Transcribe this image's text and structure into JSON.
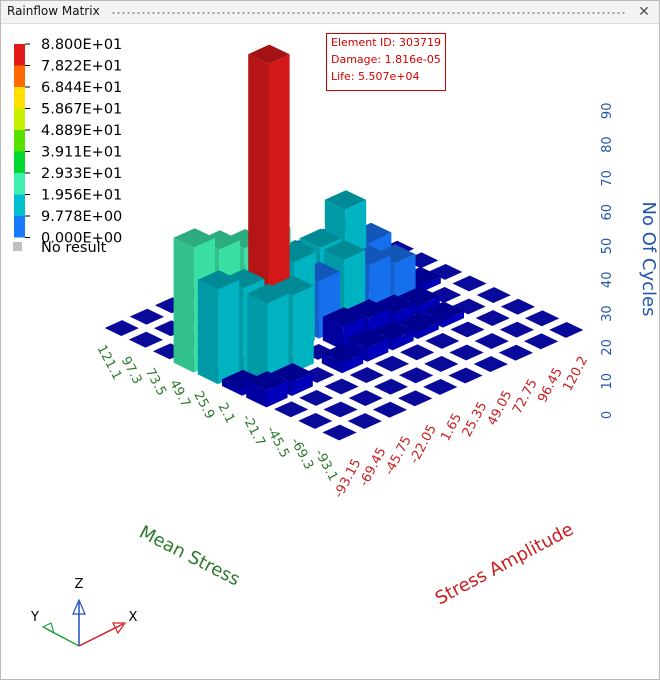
{
  "window": {
    "title": "Rainflow Matrix"
  },
  "legend": {
    "entries": [
      "8.800E+01",
      "7.822E+01",
      "6.844E+01",
      "5.867E+01",
      "4.889E+01",
      "3.911E+01",
      "2.933E+01",
      "1.956E+01",
      "9.778E+00",
      "0.000E+00"
    ],
    "colors": [
      "#e31a1c",
      "#ff6a00",
      "#ffe000",
      "#c7f000",
      "#58e000",
      "#00d832",
      "#3ef0b0",
      "#00c0d0",
      "#1878ff",
      "#0000c8"
    ],
    "no_result_label": "No result",
    "no_result_color": "#c0c0c0"
  },
  "tooltip": {
    "element_id": "Element ID: 303719",
    "damage": "Damage: 1.816e-05",
    "life": "Life: 5.507e+04"
  },
  "triad": {
    "z": "Z",
    "y": "Y",
    "x": "X"
  },
  "colors": {
    "mean_stress": "#2d7a2d",
    "stress_amplitude": "#c81e1e",
    "no_of_cycles": "#2255aa",
    "tile": "#0a0a9a",
    "bar_red": "#e00000",
    "bar_teal": "#1ebbc8",
    "bar_mint": "#24d49c",
    "bar_blue": "#1c5fdc",
    "bar_navy": "#0a0aa8"
  },
  "chart_data": {
    "type": "bar3d",
    "title": "",
    "x_axis": {
      "label": "Stress Amplitude",
      "ticks": [
        "-93.15",
        "-69.45",
        "-45.75",
        "-22.05",
        "1.65",
        "25.35",
        "49.05",
        "72.75",
        "96.45",
        "120.2"
      ]
    },
    "y_axis": {
      "label": "Mean Stress",
      "ticks": [
        "121.1",
        "97.3",
        "73.5",
        "49.7",
        "25.9",
        "2.1",
        "-21.7",
        "-45.5",
        "-69.3",
        "-93.1"
      ]
    },
    "z_axis": {
      "label": "No Of Cycles",
      "ticks": [
        "0",
        "10",
        "20",
        "30",
        "40",
        "50",
        "60",
        "70",
        "80",
        "90"
      ],
      "range": [
        0,
        90
      ]
    },
    "color_range": [
      0,
      88
    ],
    "bars": [
      {
        "amplitude": "-93.15",
        "mean": "-21.7",
        "cycles": 5
      },
      {
        "amplitude": "-69.45",
        "mean": "-21.7",
        "cycles": 4
      },
      {
        "amplitude": "-93.15",
        "mean": "2.1",
        "cycles": 2
      },
      {
        "amplitude": "-93.15",
        "mean": "49.7",
        "cycles": 37
      },
      {
        "amplitude": "-93.15",
        "mean": "25.9",
        "cycles": 28
      },
      {
        "amplitude": "-69.45",
        "mean": "49.7",
        "cycles": 33
      },
      {
        "amplitude": "-69.45",
        "mean": "25.9",
        "cycles": 25
      },
      {
        "amplitude": "-69.45",
        "mean": "2.1",
        "cycles": 24
      },
      {
        "amplitude": "-45.75",
        "mean": "49.7",
        "cycles": 30
      },
      {
        "amplitude": "-45.75",
        "mean": "25.9",
        "cycles": 88
      },
      {
        "amplitude": "-45.75",
        "mean": "2.1",
        "cycles": 23
      },
      {
        "amplitude": "-22.05",
        "mean": "49.7",
        "cycles": 30
      },
      {
        "amplitude": "-22.05",
        "mean": "25.9",
        "cycles": 26
      },
      {
        "amplitude": "1.65",
        "mean": "49.7",
        "cycles": 20
      },
      {
        "amplitude": "1.65",
        "mean": "25.9",
        "cycles": 17
      },
      {
        "amplitude": "25.35",
        "mean": "49.7",
        "cycles": 20
      },
      {
        "amplitude": "25.35",
        "mean": "25.9",
        "cycles": 20
      },
      {
        "amplitude": "49.05",
        "mean": "49.7",
        "cycles": 28
      },
      {
        "amplitude": "49.05",
        "mean": "25.9",
        "cycles": 15
      },
      {
        "amplitude": "72.75",
        "mean": "49.7",
        "cycles": 15
      },
      {
        "amplitude": "72.75",
        "mean": "25.9",
        "cycles": 12
      },
      {
        "amplitude": "1.65",
        "mean": "2.1",
        "cycles": 7
      },
      {
        "amplitude": "25.35",
        "mean": "2.1",
        "cycles": 6
      },
      {
        "amplitude": "1.65",
        "mean": "-21.7",
        "cycles": 4
      },
      {
        "amplitude": "-22.05",
        "mean": "-21.7",
        "cycles": 3
      },
      {
        "amplitude": "25.35",
        "mean": "-21.7",
        "cycles": 3
      },
      {
        "amplitude": "49.05",
        "mean": "2.1",
        "cycles": 4
      },
      {
        "amplitude": "72.75",
        "mean": "2.1",
        "cycles": 3
      },
      {
        "amplitude": "96.45",
        "mean": "25.9",
        "cycles": 2
      },
      {
        "amplitude": "49.05",
        "mean": "-21.7",
        "cycles": 2
      },
      {
        "amplitude": "72.75",
        "mean": "-21.7",
        "cycles": 2
      }
    ]
  }
}
